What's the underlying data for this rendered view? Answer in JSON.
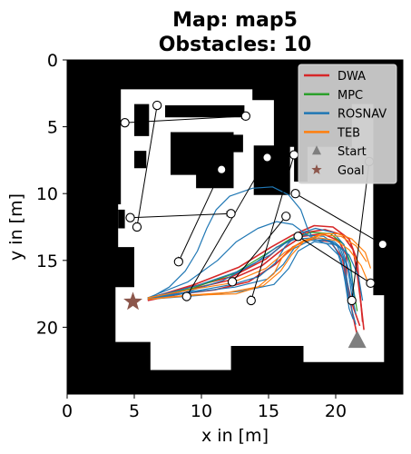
{
  "chart_data": {
    "type": "line",
    "title_line1": "Map: map5",
    "title_line2": "Obstacles: 10",
    "xlabel": "x in [m]",
    "ylabel": "y in [m]",
    "xlim": [
      0,
      25
    ],
    "ylim": [
      25,
      0
    ],
    "x_ticks": [
      0,
      5,
      10,
      15,
      20
    ],
    "y_ticks": [
      0,
      5,
      10,
      15,
      20
    ],
    "legend_position": "top-right",
    "colors": {
      "DWA": "#d62728",
      "MPC": "#2ca02c",
      "ROSNAV": "#1f77b4",
      "TEB": "#ff7f0e",
      "Start": "#7f7f7f",
      "Goal": "#8c564b",
      "obstacle_map": "#000000",
      "free_space": "#ffffff"
    },
    "legend": [
      {
        "label": "DWA",
        "kind": "line",
        "color": "#d62728"
      },
      {
        "label": "MPC",
        "kind": "line",
        "color": "#2ca02c"
      },
      {
        "label": "ROSNAV",
        "kind": "line",
        "color": "#1f77b4"
      },
      {
        "label": "TEB",
        "kind": "line",
        "color": "#ff7f0e"
      },
      {
        "label": "Start",
        "kind": "triangle",
        "color": "#7f7f7f"
      },
      {
        "label": "Goal",
        "kind": "star",
        "color": "#8c564b"
      }
    ],
    "start": [
      21.6,
      21.0
    ],
    "goal": [
      4.9,
      18.1
    ],
    "free_space": [
      [
        [
          4.0,
          2.2
        ],
        [
          13.8,
          2.2
        ],
        [
          13.8,
          3.0
        ],
        [
          15.4,
          3.0
        ],
        [
          15.4,
          6.5
        ],
        [
          21.2,
          6.5
        ],
        [
          21.2,
          3.3
        ],
        [
          22.8,
          3.3
        ],
        [
          22.8,
          17.6
        ],
        [
          23.6,
          17.6
        ],
        [
          23.6,
          22.6
        ],
        [
          17.6,
          22.6
        ],
        [
          17.6,
          21.4
        ],
        [
          12.2,
          21.4
        ],
        [
          12.2,
          23.2
        ],
        [
          6.2,
          23.2
        ],
        [
          6.2,
          21.1
        ],
        [
          3.6,
          21.1
        ],
        [
          3.6,
          17.0
        ],
        [
          5.0,
          17.0
        ],
        [
          5.0,
          14.0
        ],
        [
          3.8,
          14.0
        ],
        [
          3.8,
          10.8
        ],
        [
          4.0,
          10.8
        ]
      ]
    ],
    "obstacles": [
      [
        [
          5.0,
          3.3
        ],
        [
          6.1,
          3.3
        ],
        [
          6.1,
          5.7
        ],
        [
          5.0,
          5.7
        ]
      ],
      [
        [
          7.3,
          3.4
        ],
        [
          13.2,
          3.4
        ],
        [
          13.2,
          4.3
        ],
        [
          7.3,
          4.3
        ]
      ],
      [
        [
          7.7,
          5.4
        ],
        [
          10.1,
          5.4
        ],
        [
          10.1,
          8.6
        ],
        [
          7.7,
          8.6
        ]
      ],
      [
        [
          9.6,
          5.4
        ],
        [
          12.4,
          5.4
        ],
        [
          12.4,
          9.6
        ],
        [
          9.6,
          9.6
        ]
      ],
      [
        [
          12.3,
          5.6
        ],
        [
          13.1,
          5.6
        ],
        [
          13.1,
          6.9
        ],
        [
          12.3,
          6.9
        ]
      ],
      [
        [
          5.0,
          6.8
        ],
        [
          5.9,
          6.8
        ],
        [
          5.9,
          8.1
        ],
        [
          5.0,
          8.1
        ]
      ],
      [
        [
          3.8,
          11.2
        ],
        [
          4.3,
          11.2
        ],
        [
          4.3,
          12.6
        ],
        [
          3.8,
          12.6
        ]
      ],
      [
        [
          13.9,
          6.4
        ],
        [
          16.6,
          6.4
        ],
        [
          16.6,
          10.1
        ],
        [
          13.9,
          10.1
        ]
      ],
      [
        [
          16.9,
          5.3
        ],
        [
          17.9,
          5.3
        ],
        [
          17.9,
          9.1
        ],
        [
          16.9,
          9.1
        ]
      ],
      [
        [
          19.5,
          3.6
        ],
        [
          21.0,
          3.6
        ],
        [
          21.0,
          6.0
        ],
        [
          19.5,
          6.0
        ]
      ]
    ],
    "series": [
      {
        "name": "DWA",
        "color": "#d62728",
        "paths": [
          [
            [
              6.0,
              17.9
            ],
            [
              9.0,
              17.2
            ],
            [
              12.0,
              16.5
            ],
            [
              14.5,
              15.4
            ],
            [
              16.0,
              14.2
            ],
            [
              17.5,
              13.2
            ],
            [
              19.0,
              13.0
            ],
            [
              20.2,
              13.5
            ],
            [
              20.8,
              14.6
            ],
            [
              20.8,
              16.4
            ],
            [
              21.2,
              18.2
            ],
            [
              21.8,
              19.9
            ]
          ],
          [
            [
              6.1,
              17.8
            ],
            [
              9.2,
              17.0
            ],
            [
              12.3,
              16.2
            ],
            [
              14.8,
              14.9
            ],
            [
              16.3,
              13.6
            ],
            [
              17.8,
              12.9
            ],
            [
              19.2,
              12.7
            ],
            [
              20.5,
              13.1
            ],
            [
              21.3,
              14.2
            ],
            [
              21.6,
              16.0
            ],
            [
              21.9,
              18.4
            ],
            [
              22.1,
              20.2
            ]
          ],
          [
            [
              6.0,
              18.0
            ],
            [
              8.5,
              17.5
            ],
            [
              11.0,
              17.2
            ],
            [
              13.5,
              16.6
            ],
            [
              15.5,
              15.3
            ],
            [
              16.8,
              14.0
            ],
            [
              18.0,
              13.4
            ],
            [
              19.6,
              13.6
            ],
            [
              20.5,
              14.8
            ],
            [
              20.9,
              17.1
            ],
            [
              21.3,
              19.2
            ],
            [
              21.6,
              20.6
            ]
          ],
          [
            [
              6.2,
              17.8
            ],
            [
              9.5,
              16.8
            ],
            [
              12.8,
              15.5
            ],
            [
              15.2,
              14.0
            ],
            [
              16.8,
              13.1
            ],
            [
              18.4,
              12.4
            ],
            [
              19.8,
              12.5
            ],
            [
              21.0,
              13.4
            ],
            [
              21.6,
              15.0
            ],
            [
              21.8,
              17.3
            ],
            [
              22.0,
              19.6
            ]
          ]
        ]
      },
      {
        "name": "MPC",
        "color": "#2ca02c",
        "paths": [
          [
            [
              6.0,
              17.8
            ],
            [
              9.3,
              17.1
            ],
            [
              12.4,
              16.0
            ],
            [
              15.0,
              14.4
            ],
            [
              16.6,
              13.4
            ],
            [
              18.2,
              12.9
            ],
            [
              19.6,
              13.0
            ],
            [
              20.6,
              13.8
            ],
            [
              21.1,
              15.2
            ],
            [
              21.3,
              17.0
            ],
            [
              21.6,
              18.8
            ]
          ]
        ]
      },
      {
        "name": "ROSNAV",
        "color": "#1f77b4",
        "paths": [
          [
            [
              6.0,
              17.9
            ],
            [
              7.6,
              17.0
            ],
            [
              8.8,
              15.8
            ],
            [
              9.7,
              14.3
            ],
            [
              10.4,
              12.6
            ],
            [
              11.1,
              11.2
            ],
            [
              12.1,
              10.2
            ],
            [
              13.8,
              9.6
            ],
            [
              15.3,
              9.5
            ],
            [
              16.5,
              10.1
            ],
            [
              17.4,
              11.2
            ],
            [
              17.9,
              12.6
            ],
            [
              18.4,
              13.5
            ],
            [
              19.3,
              13.5
            ],
            [
              20.1,
              13.9
            ],
            [
              20.6,
              15.0
            ],
            [
              20.9,
              16.8
            ],
            [
              21.2,
              18.7
            ],
            [
              21.5,
              19.8
            ]
          ],
          [
            [
              6.0,
              17.8
            ],
            [
              9.0,
              16.6
            ],
            [
              11.2,
              15.0
            ],
            [
              12.6,
              13.6
            ],
            [
              14.2,
              12.6
            ],
            [
              15.6,
              12.1
            ],
            [
              16.8,
              12.3
            ],
            [
              17.6,
              12.9
            ],
            [
              18.4,
              13.4
            ],
            [
              19.4,
              13.8
            ],
            [
              20.2,
              14.6
            ],
            [
              20.7,
              16.2
            ],
            [
              21.0,
              18.2
            ]
          ],
          [
            [
              6.0,
              17.8
            ],
            [
              9.5,
              17.3
            ],
            [
              12.3,
              16.8
            ],
            [
              14.3,
              16.2
            ],
            [
              15.5,
              15.2
            ],
            [
              16.2,
              14.0
            ],
            [
              17.2,
              13.0
            ],
            [
              18.5,
              12.6
            ],
            [
              19.8,
              12.9
            ],
            [
              20.6,
              13.8
            ],
            [
              21.1,
              15.6
            ],
            [
              21.4,
              17.8
            ]
          ],
          [
            [
              6.1,
              17.9
            ],
            [
              10.0,
              17.6
            ],
            [
              13.0,
              17.3
            ],
            [
              15.4,
              16.8
            ],
            [
              16.5,
              15.6
            ],
            [
              17.2,
              14.3
            ],
            [
              18.4,
              13.6
            ],
            [
              19.8,
              13.8
            ],
            [
              20.4,
              14.9
            ],
            [
              20.7,
              16.6
            ],
            [
              21.0,
              18.6
            ],
            [
              21.3,
              19.4
            ]
          ],
          [
            [
              6.0,
              17.9
            ],
            [
              8.8,
              17.4
            ],
            [
              11.6,
              16.5
            ],
            [
              14.0,
              15.2
            ],
            [
              15.6,
              14.0
            ],
            [
              17.0,
              13.4
            ],
            [
              18.5,
              13.3
            ],
            [
              19.9,
              13.6
            ],
            [
              21.0,
              14.6
            ],
            [
              21.7,
              16.2
            ],
            [
              22.0,
              18.0
            ]
          ],
          [
            [
              6.1,
              17.8
            ],
            [
              9.6,
              16.9
            ],
            [
              12.8,
              15.8
            ],
            [
              15.1,
              14.6
            ],
            [
              16.4,
              13.6
            ],
            [
              17.7,
              13.1
            ],
            [
              19.1,
              13.2
            ],
            [
              20.3,
              14.0
            ],
            [
              20.9,
              15.6
            ],
            [
              21.2,
              17.6
            ],
            [
              21.5,
              19.0
            ]
          ],
          [
            [
              6.0,
              17.9
            ],
            [
              9.2,
              17.4
            ],
            [
              12.5,
              17.0
            ],
            [
              14.9,
              16.4
            ],
            [
              16.1,
              15.3
            ],
            [
              16.9,
              14.1
            ],
            [
              18.1,
              13.5
            ],
            [
              19.5,
              13.5
            ],
            [
              20.5,
              14.2
            ],
            [
              21.0,
              15.8
            ],
            [
              21.4,
              18.0
            ]
          ]
        ]
      },
      {
        "name": "TEB",
        "color": "#ff7f0e",
        "paths": [
          [
            [
              6.0,
              17.9
            ],
            [
              9.0,
              17.6
            ],
            [
              12.0,
              17.4
            ],
            [
              14.6,
              16.9
            ],
            [
              15.9,
              15.8
            ],
            [
              16.7,
              14.6
            ],
            [
              17.6,
              13.6
            ],
            [
              18.9,
              13.0
            ],
            [
              20.2,
              13.0
            ],
            [
              21.2,
              13.4
            ],
            [
              22.2,
              14.4
            ],
            [
              22.6,
              15.6
            ]
          ],
          [
            [
              6.1,
              17.9
            ],
            [
              9.4,
              17.6
            ],
            [
              12.6,
              17.5
            ],
            [
              14.2,
              17.0
            ],
            [
              15.4,
              16.0
            ],
            [
              16.0,
              14.8
            ],
            [
              17.3,
              13.7
            ],
            [
              18.7,
              13.3
            ],
            [
              20.0,
              13.5
            ],
            [
              21.0,
              14.2
            ],
            [
              21.9,
              15.4
            ],
            [
              22.4,
              16.6
            ]
          ],
          [
            [
              6.0,
              17.8
            ],
            [
              9.1,
              17.2
            ],
            [
              12.2,
              16.7
            ],
            [
              14.8,
              15.6
            ],
            [
              16.2,
              14.4
            ],
            [
              17.6,
              13.5
            ],
            [
              19.0,
              13.1
            ],
            [
              20.4,
              13.2
            ],
            [
              21.5,
              13.9
            ],
            [
              22.3,
              15.1
            ]
          ]
        ]
      }
    ],
    "waypoint_links": [
      [
        [
          4.3,
          4.7
        ],
        [
          13.3,
          4.2
        ]
      ],
      [
        [
          6.7,
          3.4
        ],
        [
          5.2,
          12.5
        ]
      ],
      [
        [
          4.7,
          11.8
        ],
        [
          12.2,
          11.5
        ]
      ],
      [
        [
          11.5,
          8.2
        ],
        [
          8.3,
          15.1
        ]
      ],
      [
        [
          14.9,
          7.3
        ],
        [
          8.9,
          17.7
        ]
      ],
      [
        [
          16.9,
          7.1
        ],
        [
          13.7,
          18.0
        ]
      ],
      [
        [
          17.0,
          10.0
        ],
        [
          23.5,
          13.8
        ]
      ],
      [
        [
          21.2,
          18.0
        ],
        [
          22.5,
          7.6
        ]
      ],
      [
        [
          16.3,
          11.7
        ],
        [
          12.3,
          16.6
        ]
      ],
      [
        [
          22.6,
          16.7
        ],
        [
          17.2,
          13.2
        ]
      ]
    ],
    "waypoints": [
      [
        4.3,
        4.7
      ],
      [
        13.3,
        4.2
      ],
      [
        6.7,
        3.4
      ],
      [
        5.2,
        12.5
      ],
      [
        4.7,
        11.8
      ],
      [
        12.2,
        11.5
      ],
      [
        11.5,
        8.2
      ],
      [
        8.3,
        15.1
      ],
      [
        14.9,
        7.3
      ],
      [
        8.9,
        17.7
      ],
      [
        16.9,
        7.1
      ],
      [
        13.7,
        18.0
      ],
      [
        17.0,
        10.0
      ],
      [
        23.5,
        13.8
      ],
      [
        21.2,
        18.0
      ],
      [
        22.5,
        7.6
      ],
      [
        16.3,
        11.7
      ],
      [
        12.3,
        16.6
      ],
      [
        22.6,
        16.7
      ],
      [
        17.2,
        13.2
      ]
    ]
  }
}
